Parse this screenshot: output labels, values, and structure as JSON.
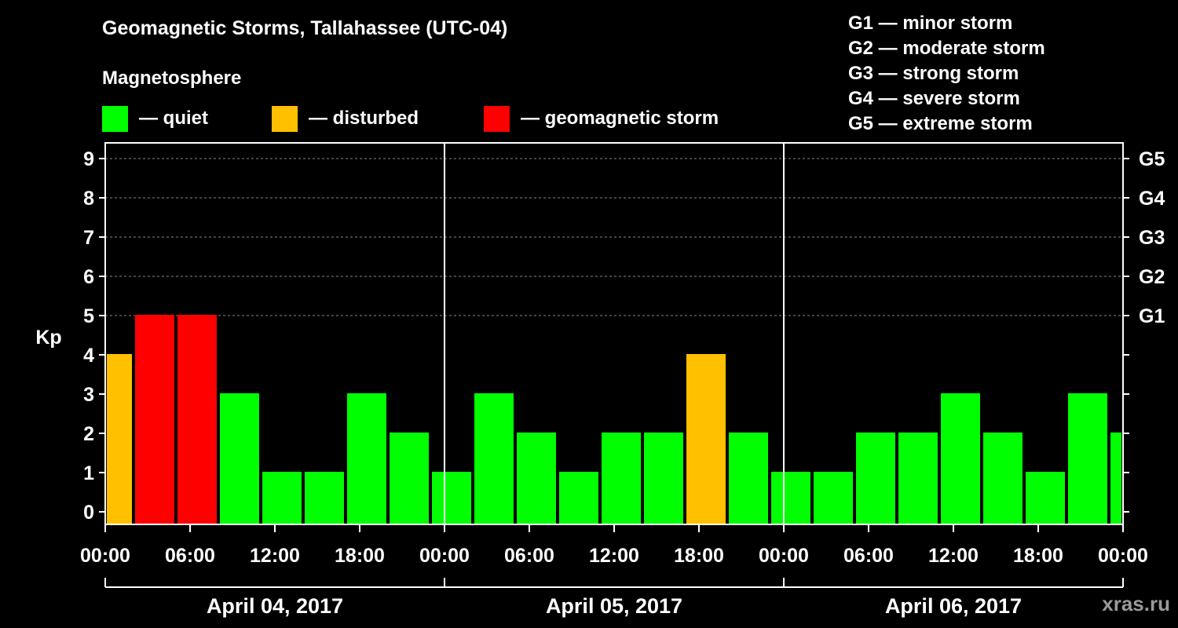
{
  "chart_data": {
    "type": "bar",
    "title": "Geomagnetic Storms, Tallahassee (UTC-04)",
    "subtitle": "Magnetosphere",
    "ylabel": "Kp",
    "ylim": [
      0,
      9
    ],
    "yticks": [
      "0",
      "1",
      "2",
      "3",
      "4",
      "5",
      "6",
      "7",
      "8",
      "9"
    ],
    "gscale": [
      {
        "kp": 5,
        "label": "G1"
      },
      {
        "kp": 6,
        "label": "G2"
      },
      {
        "kp": 7,
        "label": "G3"
      },
      {
        "kp": 8,
        "label": "G4"
      },
      {
        "kp": 9,
        "label": "G5"
      }
    ],
    "legend": [
      {
        "label": "— quiet",
        "color": "#00ff00"
      },
      {
        "label": "— disturbed",
        "color": "#ffc000"
      },
      {
        "label": "— geomagnetic storm",
        "color": "#ff0000"
      }
    ],
    "storm_legend": [
      "G1 — minor storm",
      "G2 — moderate storm",
      "G3 — strong storm",
      "G4 — severe storm",
      "G5 — extreme storm"
    ],
    "x_hours_range": [
      0,
      72
    ],
    "xticks": [
      {
        "hour": 0,
        "label": "00:00"
      },
      {
        "hour": 6,
        "label": "06:00"
      },
      {
        "hour": 12,
        "label": "12:00"
      },
      {
        "hour": 18,
        "label": "18:00"
      },
      {
        "hour": 24,
        "label": "00:00"
      },
      {
        "hour": 30,
        "label": "06:00"
      },
      {
        "hour": 36,
        "label": "12:00"
      },
      {
        "hour": 42,
        "label": "18:00"
      },
      {
        "hour": 48,
        "label": "00:00"
      },
      {
        "hour": 54,
        "label": "06:00"
      },
      {
        "hour": 60,
        "label": "12:00"
      },
      {
        "hour": 66,
        "label": "18:00"
      },
      {
        "hour": 72,
        "label": "00:00"
      }
    ],
    "days": [
      {
        "start": 0,
        "end": 24,
        "label": "April 04, 2017"
      },
      {
        "start": 24,
        "end": 48,
        "label": "April 05, 2017"
      },
      {
        "start": 48,
        "end": 72,
        "label": "April 06, 2017"
      }
    ],
    "bars": [
      {
        "start": 0,
        "end": 2,
        "kp": 4
      },
      {
        "start": 2,
        "end": 5,
        "kp": 5
      },
      {
        "start": 5,
        "end": 8,
        "kp": 5
      },
      {
        "start": 8,
        "end": 11,
        "kp": 3
      },
      {
        "start": 11,
        "end": 14,
        "kp": 1
      },
      {
        "start": 14,
        "end": 17,
        "kp": 1
      },
      {
        "start": 17,
        "end": 20,
        "kp": 3
      },
      {
        "start": 20,
        "end": 23,
        "kp": 2
      },
      {
        "start": 23,
        "end": 26,
        "kp": 1
      },
      {
        "start": 26,
        "end": 29,
        "kp": 3
      },
      {
        "start": 29,
        "end": 32,
        "kp": 2
      },
      {
        "start": 32,
        "end": 35,
        "kp": 1
      },
      {
        "start": 35,
        "end": 38,
        "kp": 2
      },
      {
        "start": 38,
        "end": 41,
        "kp": 2
      },
      {
        "start": 41,
        "end": 44,
        "kp": 4
      },
      {
        "start": 44,
        "end": 47,
        "kp": 2
      },
      {
        "start": 47,
        "end": 50,
        "kp": 1
      },
      {
        "start": 50,
        "end": 53,
        "kp": 1
      },
      {
        "start": 53,
        "end": 56,
        "kp": 2
      },
      {
        "start": 56,
        "end": 59,
        "kp": 2
      },
      {
        "start": 59,
        "end": 62,
        "kp": 3
      },
      {
        "start": 62,
        "end": 65,
        "kp": 2
      },
      {
        "start": 65,
        "end": 68,
        "kp": 1
      },
      {
        "start": 68,
        "end": 71,
        "kp": 3
      },
      {
        "start": 71,
        "end": 72,
        "kp": 2
      }
    ],
    "colors": {
      "quiet": "#00ff00",
      "disturbed": "#ffc000",
      "storm": "#ff0000"
    }
  },
  "watermark": "xras.ru"
}
